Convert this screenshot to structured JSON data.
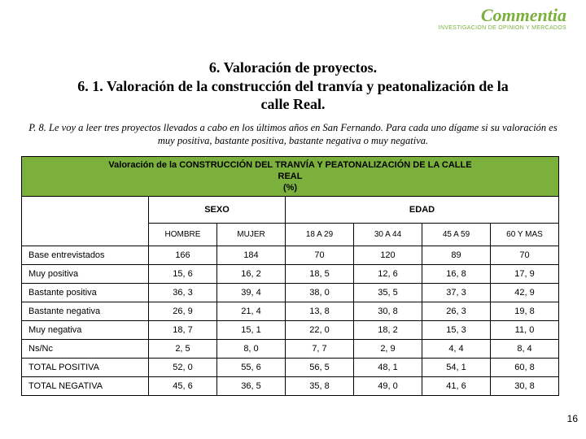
{
  "brand": {
    "name": "Commentia",
    "tagline": "INVESTIGACION DE OPINION Y MERCADOS",
    "color": "#7bb03d"
  },
  "heading": {
    "line1": "6. Valoración de proyectos.",
    "line2": "6. 1. Valoración de la construcción del tranvía y peatonalización de la calle Real."
  },
  "question": "P. 8. Le voy a leer tres proyectos llevados a cabo en los últimos años en San Fernando. Para cada uno dígame si su valoración es muy positiva, bastante positiva, bastante negativa o muy negativa.",
  "table": {
    "title_lines": [
      "Valoración de la CONSTRUCCIÓN DEL TRANVÍA Y PEATONALIZACIÓN DE LA CALLE",
      "REAL",
      "(%)"
    ],
    "group_headers": [
      "SEXO",
      "EDAD"
    ],
    "col_headers": [
      "HOMBRE",
      "MUJER",
      "18 A 29",
      "30 A 44",
      "45 A 59",
      "60 Y MAS"
    ],
    "rows": [
      {
        "label": "Base entrevistados",
        "vals": [
          "166",
          "184",
          "70",
          "120",
          "89",
          "70"
        ]
      },
      {
        "label": "Muy positiva",
        "vals": [
          "15, 6",
          "16, 2",
          "18, 5",
          "12, 6",
          "16, 8",
          "17, 9"
        ]
      },
      {
        "label": "Bastante positiva",
        "vals": [
          "36, 3",
          "39, 4",
          "38, 0",
          "35, 5",
          "37, 3",
          "42, 9"
        ]
      },
      {
        "label": "Bastante negativa",
        "vals": [
          "26, 9",
          "21, 4",
          "13, 8",
          "30, 8",
          "26, 3",
          "19, 8"
        ]
      },
      {
        "label": "Muy negativa",
        "vals": [
          "18, 7",
          "15, 1",
          "22, 0",
          "18, 2",
          "15, 3",
          "11, 0"
        ]
      },
      {
        "label": "Ns/Nc",
        "vals": [
          "2, 5",
          "8, 0",
          "7, 7",
          "2, 9",
          "4, 4",
          "8, 4"
        ]
      },
      {
        "label": "TOTAL POSITIVA",
        "vals": [
          "52, 0",
          "55, 6",
          "56, 5",
          "48, 1",
          "54, 1",
          "60, 8"
        ]
      },
      {
        "label": "TOTAL NEGATIVA",
        "vals": [
          "45, 6",
          "36, 5",
          "35, 8",
          "49, 0",
          "41, 6",
          "30, 8"
        ]
      }
    ]
  },
  "page_number": "16",
  "style": {
    "page_bg": "#ffffff",
    "accent": "#7bb03d",
    "border_color": "#000000",
    "heading_fontsize": 18,
    "question_fontsize": 12.5,
    "cell_fontsize": 11
  }
}
